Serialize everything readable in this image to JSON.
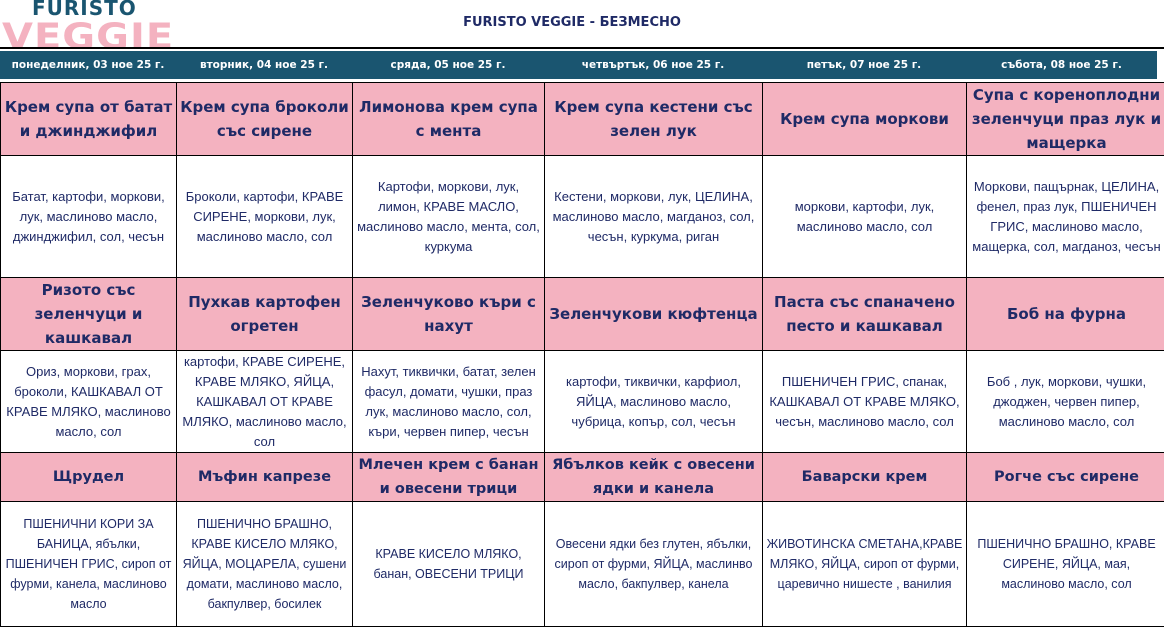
{
  "logo": {
    "line1": "FURISTO",
    "line2": "VEGGIE"
  },
  "title": "FURISTO VEGGIE - БЕЗМЕСНО",
  "days": [
    "понеделник, 03 ное 25 г.",
    "вторник, 04 ное 25 г.",
    "сряда, 05 ное 25 г.",
    "четвъртък, 06 ное 25 г.",
    "петък, 07 ное 25 г.",
    "събота, 08 ное 25 г."
  ],
  "colors": {
    "header_bar": "#1a5570",
    "dish_row": "#f4b2c0",
    "text": "#1f2a66"
  },
  "meals": [
    {
      "dishes": [
        "Крем супа от батат и джинджифил",
        "Крем супа броколи със сирене",
        "Лимонова крем супа с мента",
        "Крем супа кестени със зелен лук",
        "Крем супа моркови",
        "Супа с кореноплодни зеленчуци праз лук и мащерка"
      ],
      "ingredients": [
        "Батат, картофи, моркови, лук, маслиново масло, джинджифил, сол, чесън",
        "Броколи, картофи, КРАВЕ СИРЕНЕ, моркови, лук, маслиново масло, сол",
        "Картофи, моркови, лук, лимон, КРАВЕ МАСЛО, маслиново масло, мента, сол, куркума",
        "Кестени, моркови, лук, ЦЕЛИНА, маслиново масло, магданоз, сол, чесън, куркума, риган",
        "моркови, картофи, лук, маслиново масло, сол",
        "Моркови, пащърнак, ЦЕЛИНА, фенел, праз лук, ПШЕНИЧЕН ГРИС, маслиново масло, мащерка, сол, магданоз, чесън"
      ]
    },
    {
      "dishes": [
        "Ризото със зеленчуци и кашкавал",
        "Пухкав картофен огретен",
        "Зеленчуково къри с нахут",
        "Зеленчукови кюфтенца",
        "Паста  със спаначено песто и кашкавал",
        "Боб на фурна"
      ],
      "ingredients": [
        "Ориз, моркови, грах, броколи, КАШКАВАЛ ОТ КРАВЕ МЛЯКО, маслиново масло, сол",
        "картофи, КРАВЕ СИРЕНЕ, КРАВЕ МЛЯКО, ЯЙЦА, КАШКАВАЛ ОТ КРАВЕ МЛЯКО,  маслиново масло, сол",
        "Нахут, тиквички, батат, зелен фасул, домати, чушки, праз лук, маслиново масло, сол, къри, червен пипер, чесън",
        "картофи, тиквички, карфиол, ЯЙЦА,  маслиново масло, чубрица, копър, сол, чесън",
        "ПШЕНИЧЕН ГРИС,  спанак, КАШКАВАЛ ОТ КРАВЕ МЛЯКО, чесън,  маслиново масло, сол",
        "Боб , лук, моркови, чушки, джоджен, червен пипер, маслиново масло, сол"
      ]
    },
    {
      "dishes": [
        "Щрудел",
        "Мъфин капрезе",
        "Млечен крем  с банан и овесени трици",
        "Ябълков кейк с овесени ядки и канела",
        "Баварски крем",
        "Рогче със сирене"
      ],
      "ingredients": [
        "ПШЕНИЧНИ КОРИ ЗА БАНИЦА, ябълки, ПШЕНИЧЕН ГРИС, сироп от фурми,  канела, маслиново масло",
        "ПШЕНИЧНО БРАШНО, КРАВЕ КИСЕЛО МЛЯКО, ЯЙЦА,  МОЦАРЕЛА, сушени домати, маслиново масло, бакпулвер, босилек",
        "КРАВЕ КИСЕЛО МЛЯКО, банан, ОВЕСЕНИ ТРИЦИ",
        "Овесени ядки без глутен, ябълки, сироп от фурми, ЯЙЦА, маслинво масло, бакпулвер, канела",
        "ЖИВОТИНСКА СМЕТАНА,КРАВЕ МЛЯКО, ЯЙЦА, сироп от фурми, царевично нишесте , ванилия",
        "ПШЕНИЧНО БРАШНО, КРАВЕ СИРЕНЕ, ЯЙЦА, мая, маслиново масло, сол"
      ]
    }
  ]
}
